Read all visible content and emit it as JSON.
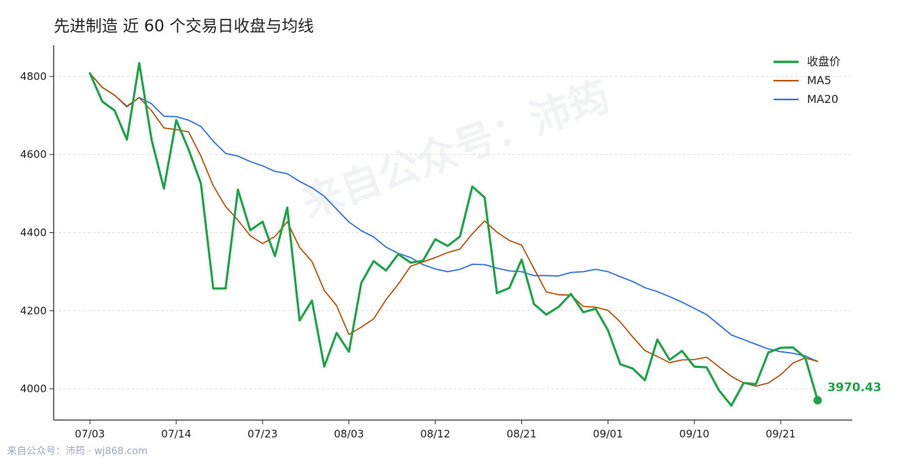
{
  "title": "先进制造 近 60 个交易日收盘与均线",
  "watermark": "来自公众号：沛筠",
  "footer": "来自公众号：沛筠 · wj868.com",
  "colors": {
    "close": "#1fa34a",
    "ma5": "#b5530f",
    "ma20": "#2f6fe0",
    "grid": "#dddddd",
    "axis": "#222222"
  },
  "chart_data": {
    "type": "line",
    "title": "先进制造 近 60 个交易日收盘与均线",
    "xlabel": "",
    "ylabel": "",
    "ylim": [
      3920,
      4880
    ],
    "yticks": [
      4000,
      4200,
      4400,
      4600,
      4800
    ],
    "xtick_labels": [
      {
        "index": 0,
        "label": "07/03"
      },
      {
        "index": 7,
        "label": "07/14"
      },
      {
        "index": 14,
        "label": "07/23"
      },
      {
        "index": 21,
        "label": "08/03"
      },
      {
        "index": 28,
        "label": "08/12"
      },
      {
        "index": 35,
        "label": "08/21"
      },
      {
        "index": 42,
        "label": "09/01"
      },
      {
        "index": 49,
        "label": "09/10"
      },
      {
        "index": 56,
        "label": "09/21"
      }
    ],
    "grid": "horizontal dashed",
    "legend_position": "top-right",
    "last_value_label": "3970.43",
    "series": [
      {
        "name": "收盘价",
        "values": [
          4808,
          4736,
          4713,
          4638,
          4834,
          4638,
          4513,
          4688,
          4613,
          4526,
          4257,
          4257,
          4510,
          4406,
          4428,
          4340,
          4464,
          4175,
          4226,
          4057,
          4143,
          4095,
          4271,
          4327,
          4303,
          4345,
          4323,
          4328,
          4383,
          4366,
          4390,
          4518,
          4490,
          4245,
          4258,
          4331,
          4217,
          4190,
          4210,
          4243,
          4196,
          4205,
          4150,
          4063,
          4052,
          4022,
          4126,
          4074,
          4097,
          4057,
          4055,
          3996,
          3957,
          4015,
          4012,
          4093,
          4105,
          4106,
          4079,
          3970.43
        ]
      },
      {
        "name": "MA5",
        "values": [
          4808,
          4772,
          4752,
          4724,
          4746,
          4712,
          4668,
          4664,
          4658,
          4596,
          4520,
          4467,
          4432,
          4392,
          4372,
          4390,
          4428,
          4362,
          4326,
          4252,
          4213,
          4139,
          4158,
          4179,
          4228,
          4268,
          4314,
          4325,
          4336,
          4349,
          4358,
          4397,
          4430,
          4401,
          4380,
          4368,
          4308,
          4248,
          4241,
          4240,
          4211,
          4209,
          4201,
          4171,
          4133,
          4098,
          4083,
          4067,
          4074,
          4075,
          4081,
          4056,
          4032,
          4015,
          4007,
          4015,
          4036,
          4066,
          4079,
          4070
        ]
      },
      {
        "name": "MA20",
        "values": [
          4808,
          4772,
          4752,
          4722,
          4746,
          4730,
          4698,
          4697,
          4688,
          4672,
          4634,
          4603,
          4596,
          4582,
          4571,
          4557,
          4551,
          4531,
          4515,
          4493,
          4460,
          4427,
          4405,
          4389,
          4363,
          4347,
          4336,
          4318,
          4307,
          4300,
          4306,
          4319,
          4318,
          4309,
          4302,
          4300,
          4290,
          4290,
          4289,
          4298,
          4300,
          4306,
          4300,
          4287,
          4275,
          4259,
          4249,
          4236,
          4222,
          4206,
          4190,
          4164,
          4138,
          4126,
          4114,
          4102,
          4095,
          4091,
          4084,
          4070
        ]
      }
    ]
  }
}
